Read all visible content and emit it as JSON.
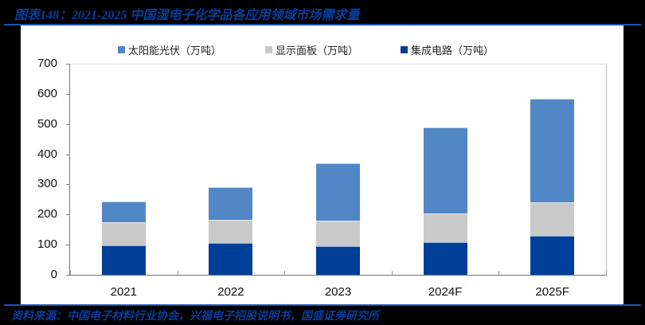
{
  "header": {
    "title": "图表148：2021-2025 中国湿电子化学品各应用领域市场需求量"
  },
  "footer": {
    "source": "资料来源：中国电子材料行业协会，兴福电子招股说明书，国盛证券研究所"
  },
  "colors": {
    "solar": "#5287c6",
    "display": "#c9c9c9",
    "ic": "#003f98",
    "accent": "#1f55b5",
    "title_text": "#0a3d9c"
  },
  "legend": [
    {
      "label": "太阳能光伏（万吨）",
      "color": "#5287c6"
    },
    {
      "label": "显示面板（万吨）",
      "color": "#c9c9c9"
    },
    {
      "label": "集成电路（万吨）",
      "color": "#003f98"
    }
  ],
  "chart_data": {
    "type": "bar",
    "stacked": true,
    "title": "2021-2025 中国湿电子化学品各应用领域市场需求量",
    "xlabel": "",
    "ylabel": "",
    "ylim": [
      0,
      700
    ],
    "yticks": [
      0,
      100,
      200,
      300,
      400,
      500,
      600,
      700
    ],
    "categories": [
      "2021",
      "2022",
      "2023",
      "2024F",
      "2025F"
    ],
    "series": [
      {
        "name": "集成电路（万吨）",
        "values": [
          98,
          105,
          95,
          108,
          130
        ]
      },
      {
        "name": "显示面板（万吨）",
        "values": [
          76,
          77,
          85,
          95,
          110
        ]
      },
      {
        "name": "太阳能光伏（万吨）",
        "values": [
          69,
          108,
          190,
          285,
          343
        ]
      }
    ],
    "totals": [
      243,
      290,
      370,
      488,
      583
    ],
    "legend_position": "top",
    "grid": false
  }
}
